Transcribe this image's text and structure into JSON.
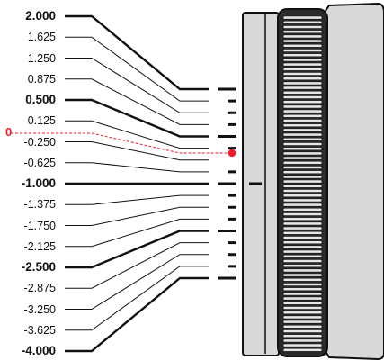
{
  "diopter_labels": [
    {
      "text": "2.000",
      "major": true
    },
    {
      "text": "1.625",
      "major": false
    },
    {
      "text": "1.250",
      "major": false
    },
    {
      "text": "0.875",
      "major": false
    },
    {
      "text": "0.500",
      "major": true
    },
    {
      "text": "0.125",
      "major": false
    },
    {
      "text": "-0.250",
      "major": false
    },
    {
      "text": "-0.625",
      "major": false
    },
    {
      "text": "-1.000",
      "major": true
    },
    {
      "text": "-1.375",
      "major": false
    },
    {
      "text": "-1.750",
      "major": false
    },
    {
      "text": "-2.125",
      "major": false
    },
    {
      "text": "-2.500",
      "major": true
    },
    {
      "text": "-2.875",
      "major": false
    },
    {
      "text": "-3.250",
      "major": false
    },
    {
      "text": "-3.625",
      "major": false
    },
    {
      "text": "-4.000",
      "major": true
    }
  ],
  "zero_marker": {
    "label": "0",
    "color": "#e5202e"
  },
  "colors": {
    "line": "#111111",
    "marker": "#e5202e",
    "eyepiece": "#d9d9d9",
    "outline": "#111111"
  }
}
